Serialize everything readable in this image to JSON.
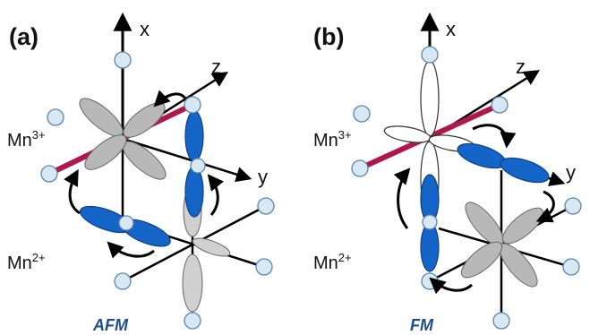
{
  "panels": [
    {
      "label": "(a)",
      "axis_x": "x",
      "axis_y": "y",
      "axis_z": "z",
      "ion_upper": "Mn",
      "ion_upper_charge": "3+",
      "ion_lower": "Mn",
      "ion_lower_charge": "2+",
      "mode": "AFM"
    },
    {
      "label": "(b)",
      "axis_x": "x",
      "axis_y": "y",
      "axis_z": "z",
      "ion_upper": "Mn",
      "ion_upper_charge": "3+",
      "ion_lower": "Mn",
      "ion_lower_charge": "2+",
      "mode": "FM"
    }
  ],
  "colors": {
    "occupied_orbital": "#1565c8",
    "gray_orbital": "#b8b8b8",
    "empty_orbital": "#ffffff",
    "bond": "#b0174a",
    "ligand": "#d7e8f4",
    "mode_label": "#1d4f8c"
  }
}
